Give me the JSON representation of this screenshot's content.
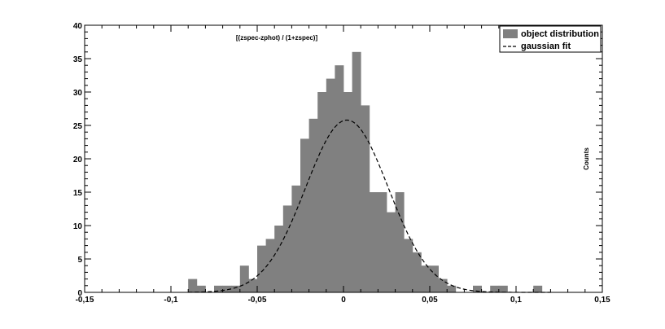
{
  "chart_data": {
    "type": "bar",
    "annotation": "[(zspec-zphot) / (1+zspec)]",
    "ylabel": "Counts",
    "xlim": [
      -0.15,
      0.15
    ],
    "ylim": [
      0,
      40
    ],
    "x_ticks": [
      -0.15,
      -0.1,
      -0.05,
      0,
      0.05,
      0.1,
      0.15
    ],
    "x_tick_labels": [
      "-0,15",
      "-0,1",
      "-0,05",
      "0",
      "0,05",
      "0,1",
      "0,15"
    ],
    "y_ticks": [
      0,
      5,
      10,
      15,
      20,
      25,
      30,
      35,
      40
    ],
    "y_tick_labels": [
      "0",
      "5",
      "10",
      "15",
      "20",
      "25",
      "30",
      "35",
      "40"
    ],
    "grid": false,
    "legend_position": "top-right",
    "bar_color": "#808080",
    "fit_color": "#000000",
    "series": [
      {
        "name": "object distribution",
        "kind": "histogram",
        "bin_width": 0.005,
        "bin_centers": [
          -0.0875,
          -0.0825,
          -0.0775,
          -0.0725,
          -0.0675,
          -0.0625,
          -0.0575,
          -0.0525,
          -0.0475,
          -0.0425,
          -0.0375,
          -0.0325,
          -0.0275,
          -0.0225,
          -0.0175,
          -0.0125,
          -0.0075,
          -0.0025,
          0.0025,
          0.0075,
          0.0125,
          0.0175,
          0.0225,
          0.0275,
          0.0325,
          0.0375,
          0.0425,
          0.0475,
          0.0525,
          0.0575,
          0.0625,
          0.0675,
          0.0725,
          0.0775,
          0.0825,
          0.0875,
          0.0925,
          0.0975,
          0.1025,
          0.1075,
          0.1125
        ],
        "values": [
          2,
          1,
          0,
          1,
          1,
          1,
          4,
          2,
          7,
          8,
          10,
          13,
          16,
          23,
          26,
          30,
          32,
          34,
          30,
          36,
          28,
          15,
          15,
          12,
          15,
          8,
          6,
          4,
          4,
          2,
          1,
          0,
          0,
          1,
          0,
          1,
          1,
          0,
          0,
          0,
          1
        ]
      },
      {
        "name": "gaussian fit",
        "kind": "gaussian",
        "amplitude": 25.8,
        "mean": 0.002,
        "sigma": 0.024
      }
    ]
  }
}
